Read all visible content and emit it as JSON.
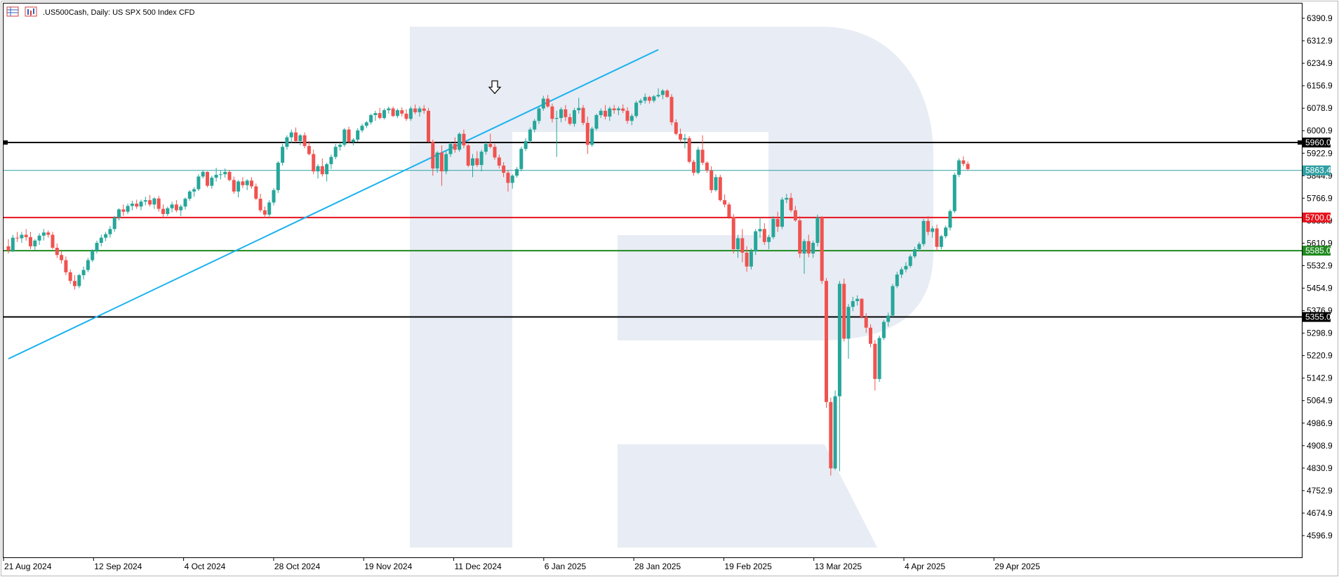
{
  "header": {
    "symbol": ".US500Cash",
    "timeframe": "Daily",
    "description": "US SPX 500 Index CFD",
    "icons": [
      "table-icon",
      "chart-icon"
    ]
  },
  "chart_data": {
    "type": "candlestick",
    "title": ".US500Cash, Daily:  US SPX 500 Index CFD",
    "xlabel": "",
    "ylabel": "",
    "ylim": [
      4540,
      6430
    ],
    "grid": false,
    "colors": {
      "bull": "#26a69a",
      "bear": "#ef5350",
      "trendline": "#1ab2f0",
      "watermark": "#e8ecf4"
    },
    "y_ticks": [
      "6390.9",
      "6312.9",
      "6234.9",
      "6156.9",
      "6078.9",
      "6000.9",
      "5922.9",
      "5844.9",
      "5766.9",
      "5688.9",
      "5610.9",
      "5532.9",
      "5454.9",
      "5376.9",
      "5298.9",
      "5220.9",
      "5142.9",
      "5064.9",
      "4986.9",
      "4908.9",
      "4830.9",
      "4752.9",
      "4674.9",
      "4596.9"
    ],
    "x_ticks": [
      "21 Aug 2024",
      "12 Sep 2024",
      "4 Oct 2024",
      "28 Oct 2024",
      "19 Nov 2024",
      "11 Dec 2024",
      "6 Jan 2025",
      "28 Jan 2025",
      "19 Feb 2025",
      "13 Mar 2025",
      "4 Apr 2025",
      "29 Apr 2025"
    ],
    "levels": [
      {
        "label": "5960.0",
        "value": 5960.0,
        "color": "#000000",
        "width": 2
      },
      {
        "label": "5863.4",
        "value": 5863.4,
        "color": "#2f9fa3",
        "width": 1
      },
      {
        "label": "5700.0",
        "value": 5700.0,
        "color": "#e8121c",
        "width": 2
      },
      {
        "label": "5585.0",
        "value": 5585.0,
        "color": "#1f8a1f",
        "width": 2
      },
      {
        "label": "5355.0",
        "value": 5355.0,
        "color": "#000000",
        "width": 2
      }
    ],
    "trendline": {
      "from": {
        "bar": 0,
        "value": 5210
      },
      "to": {
        "bar": 147,
        "value": 6282
      }
    },
    "marker": {
      "name": "down-arrow-marker",
      "bar": 110,
      "value": 6130
    },
    "candles": [
      [
        5600,
        5625,
        5575,
        5585
      ],
      [
        5585,
        5640,
        5580,
        5630
      ],
      [
        5630,
        5650,
        5615,
        5628
      ],
      [
        5628,
        5650,
        5612,
        5640
      ],
      [
        5640,
        5660,
        5620,
        5632
      ],
      [
        5632,
        5650,
        5590,
        5600
      ],
      [
        5600,
        5625,
        5585,
        5620
      ],
      [
        5620,
        5645,
        5605,
        5637
      ],
      [
        5637,
        5660,
        5620,
        5648
      ],
      [
        5648,
        5655,
        5630,
        5640
      ],
      [
        5640,
        5650,
        5590,
        5595
      ],
      [
        5595,
        5610,
        5560,
        5570
      ],
      [
        5570,
        5585,
        5540,
        5552
      ],
      [
        5552,
        5565,
        5500,
        5510
      ],
      [
        5510,
        5520,
        5470,
        5480
      ],
      [
        5480,
        5500,
        5450,
        5462
      ],
      [
        5462,
        5505,
        5455,
        5500
      ],
      [
        5500,
        5530,
        5485,
        5518
      ],
      [
        5518,
        5560,
        5510,
        5552
      ],
      [
        5552,
        5590,
        5545,
        5585
      ],
      [
        5585,
        5620,
        5575,
        5612
      ],
      [
        5612,
        5640,
        5600,
        5630
      ],
      [
        5630,
        5650,
        5618,
        5642
      ],
      [
        5642,
        5670,
        5630,
        5660
      ],
      [
        5660,
        5705,
        5650,
        5700
      ],
      [
        5700,
        5732,
        5690,
        5728
      ],
      [
        5728,
        5745,
        5706,
        5720
      ],
      [
        5720,
        5748,
        5712,
        5740
      ],
      [
        5740,
        5758,
        5725,
        5748
      ],
      [
        5748,
        5762,
        5730,
        5738
      ],
      [
        5738,
        5762,
        5725,
        5755
      ],
      [
        5755,
        5772,
        5742,
        5760
      ],
      [
        5760,
        5778,
        5738,
        5745
      ],
      [
        5745,
        5770,
        5730,
        5766
      ],
      [
        5766,
        5775,
        5720,
        5730
      ],
      [
        5730,
        5745,
        5700,
        5712
      ],
      [
        5712,
        5738,
        5705,
        5732
      ],
      [
        5732,
        5755,
        5718,
        5745
      ],
      [
        5745,
        5760,
        5718,
        5725
      ],
      [
        5725,
        5745,
        5705,
        5738
      ],
      [
        5738,
        5770,
        5728,
        5765
      ],
      [
        5765,
        5795,
        5758,
        5790
      ],
      [
        5790,
        5805,
        5772,
        5798
      ],
      [
        5798,
        5850,
        5792,
        5842
      ],
      [
        5842,
        5865,
        5835,
        5858
      ],
      [
        5858,
        5860,
        5805,
        5810
      ],
      [
        5810,
        5845,
        5800,
        5838
      ],
      [
        5838,
        5872,
        5825,
        5848
      ],
      [
        5848,
        5862,
        5832,
        5850
      ],
      [
        5850,
        5870,
        5838,
        5858
      ],
      [
        5858,
        5865,
        5825,
        5830
      ],
      [
        5830,
        5842,
        5782,
        5790
      ],
      [
        5790,
        5830,
        5770,
        5825
      ],
      [
        5825,
        5840,
        5802,
        5812
      ],
      [
        5812,
        5833,
        5795,
        5828
      ],
      [
        5828,
        5840,
        5800,
        5808
      ],
      [
        5808,
        5818,
        5760,
        5765
      ],
      [
        5765,
        5782,
        5718,
        5725
      ],
      [
        5725,
        5738,
        5698,
        5710
      ],
      [
        5710,
        5760,
        5700,
        5752
      ],
      [
        5752,
        5802,
        5742,
        5795
      ],
      [
        5795,
        5895,
        5785,
        5890
      ],
      [
        5890,
        5955,
        5880,
        5945
      ],
      [
        5945,
        5985,
        5935,
        5978
      ],
      [
        5978,
        6005,
        5958,
        5995
      ],
      [
        5995,
        6012,
        5960,
        5965
      ],
      [
        5965,
        5990,
        5950,
        5985
      ],
      [
        5985,
        5995,
        5940,
        5948
      ],
      [
        5948,
        5965,
        5915,
        5920
      ],
      [
        5920,
        5935,
        5850,
        5860
      ],
      [
        5860,
        5885,
        5835,
        5878
      ],
      [
        5878,
        5905,
        5842,
        5850
      ],
      [
        5850,
        5890,
        5825,
        5885
      ],
      [
        5885,
        5918,
        5868,
        5910
      ],
      [
        5910,
        5955,
        5902,
        5945
      ],
      [
        5945,
        5960,
        5932,
        5952
      ],
      [
        5952,
        6010,
        5945,
        6005
      ],
      [
        6005,
        6015,
        5958,
        5962
      ],
      [
        5962,
        5975,
        5950,
        5970
      ],
      [
        5970,
        6010,
        5962,
        6002
      ],
      [
        6002,
        6025,
        5995,
        6018
      ],
      [
        6018,
        6035,
        6010,
        6030
      ],
      [
        6030,
        6060,
        6022,
        6055
      ],
      [
        6055,
        6070,
        6035,
        6062
      ],
      [
        6062,
        6080,
        6040,
        6045
      ],
      [
        6045,
        6078,
        6040,
        6072
      ],
      [
        6072,
        6085,
        6060,
        6078
      ],
      [
        6078,
        6085,
        6048,
        6052
      ],
      [
        6052,
        6078,
        6045,
        6072
      ],
      [
        6072,
        6082,
        6050,
        6060
      ],
      [
        6060,
        6075,
        6035,
        6042
      ],
      [
        6042,
        6085,
        6035,
        6078
      ],
      [
        6078,
        6092,
        6058,
        6065
      ],
      [
        6065,
        6085,
        6050,
        6078
      ],
      [
        6078,
        6090,
        6060,
        6070
      ],
      [
        6070,
        6080,
        5960,
        5962
      ],
      [
        5962,
        5970,
        5845,
        5870
      ],
      [
        5870,
        5930,
        5855,
        5925
      ],
      [
        5925,
        5950,
        5810,
        5860
      ],
      [
        5860,
        5930,
        5850,
        5920
      ],
      [
        5920,
        5962,
        5910,
        5955
      ],
      [
        5955,
        5978,
        5925,
        5935
      ],
      [
        5935,
        5995,
        5928,
        5990
      ],
      [
        5990,
        6005,
        5940,
        5950
      ],
      [
        5950,
        5955,
        5875,
        5880
      ],
      [
        5880,
        5920,
        5840,
        5905
      ],
      [
        5905,
        5930,
        5875,
        5882
      ],
      [
        5882,
        5935,
        5860,
        5928
      ],
      [
        5928,
        5965,
        5918,
        5955
      ],
      [
        5955,
        5990,
        5940,
        5945
      ],
      [
        5945,
        5955,
        5900,
        5908
      ],
      [
        5908,
        5918,
        5870,
        5880
      ],
      [
        5880,
        5892,
        5840,
        5855
      ],
      [
        5855,
        5865,
        5790,
        5820
      ],
      [
        5820,
        5850,
        5800,
        5845
      ],
      [
        5845,
        5875,
        5838,
        5868
      ],
      [
        5868,
        5945,
        5860,
        5938
      ],
      [
        5938,
        5975,
        5930,
        5965
      ],
      [
        5965,
        6012,
        5958,
        6005
      ],
      [
        6005,
        6042,
        5995,
        6035
      ],
      [
        6035,
        6085,
        6025,
        6078
      ],
      [
        6078,
        6122,
        6070,
        6112
      ],
      [
        6112,
        6125,
        6080,
        6085
      ],
      [
        6085,
        6095,
        6030,
        6042
      ],
      [
        6042,
        6070,
        5910,
        6045
      ],
      [
        6045,
        6082,
        6030,
        6075
      ],
      [
        6075,
        6090,
        6035,
        6048
      ],
      [
        6048,
        6060,
        6020,
        6025
      ],
      [
        6025,
        6080,
        6015,
        6072
      ],
      [
        6072,
        6115,
        6060,
        6080
      ],
      [
        6080,
        6090,
        6020,
        6028
      ],
      [
        6028,
        6050,
        5920,
        5952
      ],
      [
        5952,
        6015,
        5945,
        6008
      ],
      [
        6008,
        6060,
        6002,
        6055
      ],
      [
        6055,
        6078,
        6045,
        6070
      ],
      [
        6070,
        6090,
        6040,
        6050
      ],
      [
        6050,
        6085,
        6035,
        6078
      ],
      [
        6078,
        6090,
        6060,
        6072
      ],
      [
        6072,
        6085,
        6055,
        6078
      ],
      [
        6078,
        6092,
        6062,
        6070
      ],
      [
        6070,
        6082,
        6025,
        6035
      ],
      [
        6035,
        6060,
        6020,
        6052
      ],
      [
        6052,
        6105,
        6045,
        6098
      ],
      [
        6098,
        6112,
        6090,
        6105
      ],
      [
        6105,
        6130,
        6095,
        6118
      ],
      [
        6118,
        6122,
        6095,
        6105
      ],
      [
        6105,
        6125,
        6098,
        6120
      ],
      [
        6120,
        6148,
        6115,
        6125
      ],
      [
        6125,
        6145,
        6110,
        6140
      ],
      [
        6140,
        6145,
        6115,
        6118
      ],
      [
        6118,
        6128,
        6020,
        6030
      ],
      [
        6030,
        6040,
        5985,
        5990
      ],
      [
        5990,
        6008,
        5960,
        5970
      ],
      [
        5970,
        5990,
        5940,
        5975
      ],
      [
        5975,
        5982,
        5888,
        5893
      ],
      [
        5893,
        5900,
        5845,
        5855
      ],
      [
        5855,
        5945,
        5850,
        5935
      ],
      [
        5935,
        5985,
        5882,
        5890
      ],
      [
        5890,
        5895,
        5855,
        5863
      ],
      [
        5863,
        5878,
        5785,
        5795
      ],
      [
        5795,
        5850,
        5790,
        5840
      ],
      [
        5840,
        5848,
        5755,
        5760
      ],
      [
        5760,
        5780,
        5735,
        5745
      ],
      [
        5745,
        5752,
        5695,
        5702
      ],
      [
        5702,
        5712,
        5575,
        5590
      ],
      [
        5590,
        5640,
        5560,
        5628
      ],
      [
        5628,
        5660,
        5545,
        5578
      ],
      [
        5578,
        5600,
        5512,
        5530
      ],
      [
        5530,
        5592,
        5520,
        5582
      ],
      [
        5582,
        5660,
        5570,
        5652
      ],
      [
        5652,
        5700,
        5630,
        5660
      ],
      [
        5660,
        5680,
        5605,
        5615
      ],
      [
        5615,
        5640,
        5590,
        5632
      ],
      [
        5632,
        5705,
        5625,
        5695
      ],
      [
        5695,
        5720,
        5650,
        5668
      ],
      [
        5668,
        5770,
        5660,
        5762
      ],
      [
        5762,
        5782,
        5750,
        5768
      ],
      [
        5768,
        5785,
        5718,
        5725
      ],
      [
        5725,
        5740,
        5685,
        5690
      ],
      [
        5690,
        5705,
        5560,
        5575
      ],
      [
        5575,
        5625,
        5505,
        5618
      ],
      [
        5618,
        5640,
        5562,
        5575
      ],
      [
        5575,
        5620,
        5560,
        5612
      ],
      [
        5612,
        5710,
        5600,
        5700
      ],
      [
        5700,
        5705,
        5470,
        5480
      ],
      [
        5480,
        5490,
        5040,
        5060
      ],
      [
        5060,
        5075,
        4805,
        4830
      ],
      [
        4830,
        5100,
        4825,
        5080
      ],
      [
        5080,
        5480,
        4820,
        5470
      ],
      [
        5470,
        5488,
        5270,
        5280
      ],
      [
        5280,
        5400,
        5210,
        5390
      ],
      [
        5390,
        5425,
        5375,
        5410
      ],
      [
        5410,
        5430,
        5395,
        5418
      ],
      [
        5418,
        5420,
        5350,
        5355
      ],
      [
        5355,
        5368,
        5300,
        5318
      ],
      [
        5318,
        5330,
        5250,
        5262
      ],
      [
        5262,
        5275,
        5100,
        5140
      ],
      [
        5140,
        5290,
        5130,
        5282
      ],
      [
        5282,
        5345,
        5275,
        5338
      ],
      [
        5338,
        5370,
        5322,
        5360
      ],
      [
        5360,
        5470,
        5355,
        5462
      ],
      [
        5462,
        5512,
        5455,
        5502
      ],
      [
        5502,
        5528,
        5490,
        5520
      ],
      [
        5520,
        5545,
        5510,
        5532
      ],
      [
        5532,
        5572,
        5525,
        5565
      ],
      [
        5565,
        5598,
        5558,
        5590
      ],
      [
        5590,
        5615,
        5582,
        5608
      ],
      [
        5608,
        5695,
        5600,
        5688
      ],
      [
        5688,
        5705,
        5638,
        5650
      ],
      [
        5650,
        5670,
        5630,
        5662
      ],
      [
        5662,
        5675,
        5585,
        5598
      ],
      [
        5598,
        5640,
        5590,
        5635
      ],
      [
        5635,
        5672,
        5628,
        5665
      ],
      [
        5665,
        5728,
        5655,
        5722
      ],
      [
        5722,
        5855,
        5715,
        5848
      ],
      [
        5848,
        5905,
        5840,
        5898
      ],
      [
        5898,
        5912,
        5878,
        5886
      ],
      [
        5886,
        5895,
        5862,
        5868
      ]
    ]
  }
}
